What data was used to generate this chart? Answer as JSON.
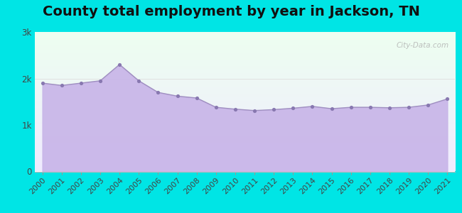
{
  "title": "County total employment by year in Jackson, TN",
  "years": [
    2000,
    2001,
    2002,
    2003,
    2004,
    2005,
    2006,
    2007,
    2008,
    2009,
    2010,
    2011,
    2012,
    2013,
    2014,
    2015,
    2016,
    2017,
    2018,
    2019,
    2020,
    2021
  ],
  "values": [
    1900,
    1850,
    1900,
    1950,
    2300,
    1950,
    1700,
    1620,
    1580,
    1380,
    1340,
    1310,
    1330,
    1360,
    1400,
    1350,
    1380,
    1380,
    1370,
    1380,
    1430,
    1560
  ],
  "ylim": [
    0,
    3000
  ],
  "yticks": [
    0,
    1000,
    2000,
    3000
  ],
  "ytick_labels": [
    "0",
    "1k",
    "2k",
    "3k"
  ],
  "fill_color": "#c8b4e8",
  "fill_alpha": 0.9,
  "line_color": "#9f8fc0",
  "marker_color": "#8878b0",
  "bg_outer": "#00e5e5",
  "bg_plot_top": "#edfff0",
  "bg_plot_bottom": "#f0ebff",
  "watermark": "City-Data.com",
  "title_fontsize": 14,
  "tick_fontsize": 8.5,
  "gridline_color": "#dddddd"
}
